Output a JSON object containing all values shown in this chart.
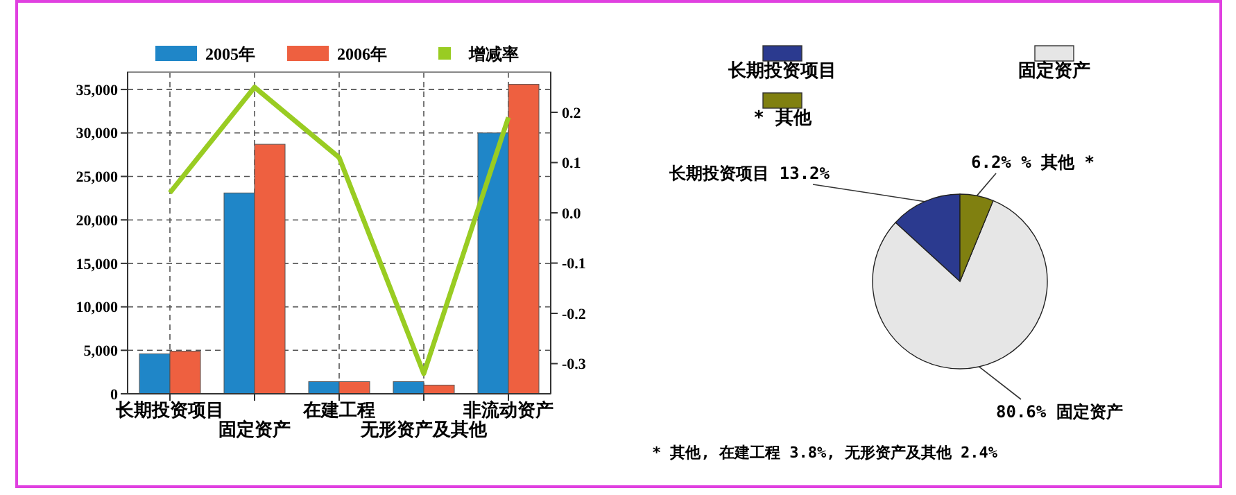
{
  "chart_data": [
    {
      "type": "bar",
      "categories": [
        "长期投资项目",
        "固定资产",
        "在建工程",
        "无形资产及其他",
        "非流动资产"
      ],
      "series": [
        {
          "name": "2005年",
          "color": "#1f86c8",
          "values": [
            4600,
            23100,
            1400,
            1400,
            30000
          ]
        },
        {
          "name": "2006年",
          "color": "#ee6040",
          "values": [
            4900,
            28700,
            1400,
            1000,
            35600
          ]
        },
        {
          "name": "增减率",
          "type": "line",
          "axis": "y2",
          "color": "#99cc22",
          "values": [
            0.04,
            0.25,
            0.11,
            -0.32,
            0.19
          ]
        }
      ],
      "ylim": [
        0,
        37000
      ],
      "yticks": [
        {
          "value": 0,
          "label": "0"
        },
        {
          "value": 5000,
          "label": "5,000"
        },
        {
          "value": 10000,
          "label": "10,000"
        },
        {
          "value": 15000,
          "label": "15,000"
        },
        {
          "value": 20000,
          "label": "20,000"
        },
        {
          "value": 25000,
          "label": "25,000"
        },
        {
          "value": 30000,
          "label": "30,000"
        },
        {
          "value": 35000,
          "label": "35,000"
        }
      ],
      "y2lim": [
        -0.36,
        0.28
      ],
      "y2ticks": [
        {
          "value": 0.2,
          "label": "0.2"
        },
        {
          "value": 0.1,
          "label": "0.1"
        },
        {
          "value": 0,
          "label": "0.0"
        },
        {
          "value": -0.1,
          "label": "-0.1"
        },
        {
          "value": -0.2,
          "label": "-0.2"
        },
        {
          "value": -0.3,
          "label": "-0.3"
        }
      ],
      "grid": true,
      "legend": "top",
      "marker": "none"
    },
    {
      "type": "pie",
      "categories": [
        "长期投资项目",
        "固定资产",
        "* 其他"
      ],
      "values": [
        13.2,
        80.6,
        6.2
      ],
      "colors": [
        "#2b3a8f",
        "#e6e6e6",
        "#808010"
      ],
      "value_labels": [
        "长期投资项目 13.2%",
        "80.6% 固定资产",
        "6.2%  % 其他 *"
      ],
      "legend": "top",
      "annotations": [
        "* 其他, 在建工程 3.8%, 无形资产及其他 2.4%"
      ]
    }
  ]
}
